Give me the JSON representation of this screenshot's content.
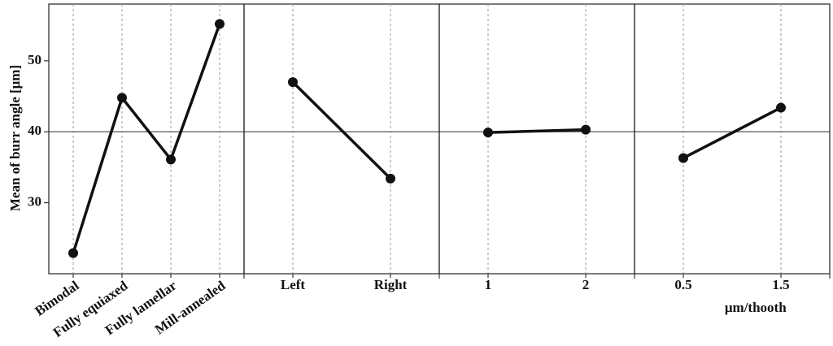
{
  "chart_data": {
    "type": "line",
    "y_label": "Mean of burr angle [μm]",
    "ylim": [
      20,
      58
    ],
    "yticks": [
      30,
      40,
      50
    ],
    "mean_line": 40,
    "color": "#111111",
    "panels": [
      {
        "categories": [
          "Bimodal",
          "Fully equiaxed",
          "Fully lamellar",
          "Mill-annealed"
        ],
        "values": [
          22.9,
          44.8,
          36.1,
          55.2
        ],
        "rotate_labels": true
      },
      {
        "categories": [
          "Left",
          "Right"
        ],
        "values": [
          47.0,
          33.4
        ]
      },
      {
        "categories": [
          "1",
          "2"
        ],
        "values": [
          39.9,
          40.3
        ]
      },
      {
        "categories": [
          "0.5",
          "1.5"
        ],
        "values": [
          36.3,
          43.4
        ],
        "x_label": "μm/thooth"
      }
    ]
  }
}
